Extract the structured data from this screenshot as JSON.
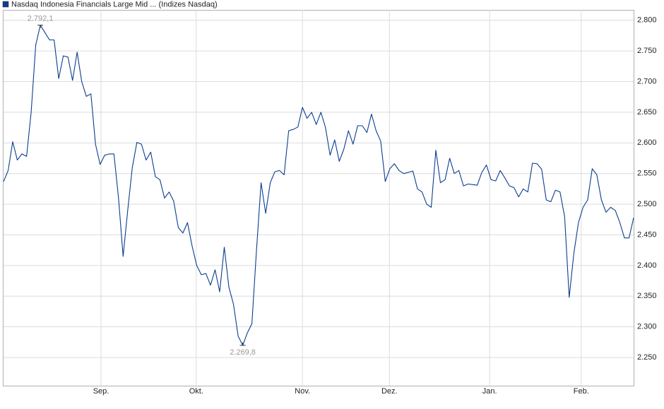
{
  "chart_data": {
    "type": "line",
    "series": [
      {
        "name": "Nasdaq Indonesia Financials Large Mid ... (Indizes Nasdaq)",
        "color": "#0b3d91",
        "values": [
          2537,
          2555,
          2602,
          2572,
          2582,
          2578,
          2650,
          2760,
          2792.1,
          2780,
          2768,
          2768,
          2705,
          2742,
          2740,
          2702,
          2748,
          2700,
          2676,
          2680,
          2598,
          2565,
          2580,
          2582,
          2582,
          2510,
          2415,
          2490,
          2560,
          2601,
          2598,
          2572,
          2585,
          2545,
          2540,
          2510,
          2520,
          2505,
          2462,
          2453,
          2470,
          2432,
          2400,
          2385,
          2387,
          2368,
          2393,
          2357,
          2430,
          2365,
          2337,
          2285,
          2269.8,
          2290,
          2305,
          2425,
          2535,
          2485,
          2535,
          2553,
          2555,
          2548,
          2620,
          2622,
          2626,
          2658,
          2640,
          2650,
          2630,
          2650,
          2625,
          2580,
          2605,
          2570,
          2590,
          2620,
          2598,
          2628,
          2628,
          2617,
          2647,
          2620,
          2603,
          2537,
          2558,
          2566,
          2555,
          2550,
          2552,
          2554,
          2525,
          2520,
          2500,
          2495,
          2588,
          2535,
          2540,
          2575,
          2550,
          2555,
          2530,
          2533,
          2532,
          2531,
          2552,
          2564,
          2540,
          2538,
          2555,
          2543,
          2530,
          2527,
          2512,
          2525,
          2520,
          2567,
          2566,
          2557,
          2507,
          2504,
          2523,
          2520,
          2480,
          2348,
          2420,
          2470,
          2495,
          2507,
          2558,
          2548,
          2507,
          2487,
          2495,
          2490,
          2470,
          2445,
          2445,
          2478
        ]
      }
    ],
    "annotations": [
      {
        "value": 2792.1,
        "label": "2.792,1"
      },
      {
        "value": 2269.8,
        "label": "2.269,8"
      }
    ],
    "xlim": [
      0,
      137
    ],
    "xticks": [
      {
        "value": 21.2,
        "label": "Sep."
      },
      {
        "value": 41.9,
        "label": "Okt."
      },
      {
        "value": 65,
        "label": "Nov."
      },
      {
        "value": 83.9,
        "label": "Dez."
      },
      {
        "value": 105.7,
        "label": "Jan."
      },
      {
        "value": 125.6,
        "label": "Feb."
      }
    ],
    "ylim": [
      2204,
      2817
    ],
    "yticks": [
      {
        "value": 2250,
        "label": "2.250"
      },
      {
        "value": 2300,
        "label": "2.300"
      },
      {
        "value": 2350,
        "label": "2.350"
      },
      {
        "value": 2400,
        "label": "2.400"
      },
      {
        "value": 2450,
        "label": "2.450"
      },
      {
        "value": 2500,
        "label": "2.500"
      },
      {
        "value": 2550,
        "label": "2.550"
      },
      {
        "value": 2600,
        "label": "2.600"
      },
      {
        "value": 2650,
        "label": "2.650"
      },
      {
        "value": 2700,
        "label": "2.700"
      },
      {
        "value": 2750,
        "label": "2.750"
      },
      {
        "value": 2800,
        "label": "2.800"
      }
    ],
    "grid": true
  }
}
